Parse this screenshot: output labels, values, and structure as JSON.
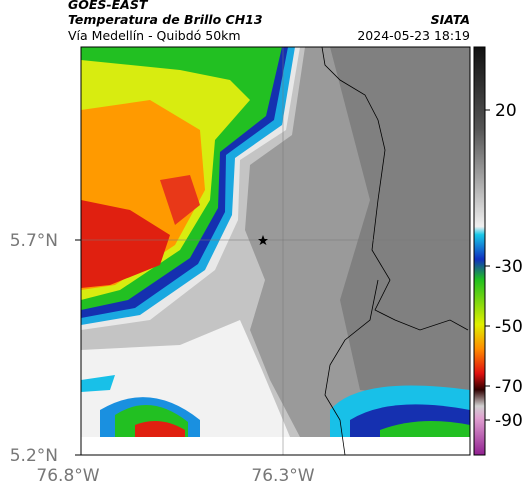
{
  "header": {
    "satellite": "GOES-EAST",
    "product": "Temperatura de Brillo CH13",
    "location": "Vía Medellín - Quibdó 50km",
    "source": "SIATA",
    "timestamp": "2024-05-23 18:19"
  },
  "map": {
    "lat_labels": [
      "5.7°N",
      "5.2°N"
    ],
    "lon_labels": [
      "76.8°W",
      "76.3°W"
    ]
  },
  "colorbar": {
    "ticks": [
      "20",
      "-30",
      "-50",
      "-70",
      "-90"
    ]
  }
}
